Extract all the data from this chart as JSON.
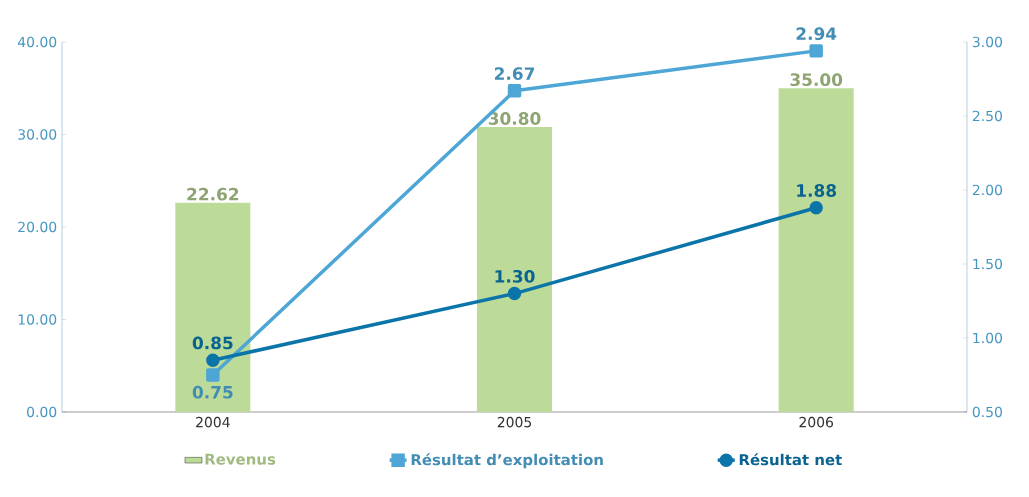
{
  "chart_data": {
    "type": "bar",
    "categories": [
      "2004",
      "2005",
      "2006"
    ],
    "ylim": [
      0,
      40
    ],
    "yticks": [
      {
        "value": 0,
        "label": "0.00"
      },
      {
        "value": 10,
        "label": "10.00"
      },
      {
        "value": 20,
        "label": "20.00"
      },
      {
        "value": 30,
        "label": "30.00"
      },
      {
        "value": 40,
        "label": "40.00"
      }
    ],
    "y2lim": [
      0.5,
      3
    ],
    "y2ticks": [
      {
        "value": 0.5,
        "label": "0.50"
      },
      {
        "value": 1,
        "label": "1.00"
      },
      {
        "value": 1.5,
        "label": "1.50"
      },
      {
        "value": 2,
        "label": "2.00"
      },
      {
        "value": 2.5,
        "label": "2.50"
      },
      {
        "value": 3,
        "label": "3.00"
      }
    ],
    "legend": "bottom",
    "grid": false,
    "series": [
      {
        "name": "Revenus",
        "color": "#bddb98",
        "values": [
          22.62,
          30.8,
          35.0
        ],
        "value_labels": [
          "22.62",
          "30.80",
          "35.00"
        ]
      },
      {
        "name": "Résultat d’exploitation",
        "type": "line",
        "axis": "y2",
        "marker": "square",
        "color": "#4da6d5",
        "values": [
          0.75,
          2.67,
          2.94
        ],
        "value_labels": [
          "0.75",
          "2.67",
          "2.94"
        ]
      },
      {
        "name": "Résultat net",
        "type": "line",
        "axis": "y2",
        "marker": "circle",
        "color": "#0b75a9",
        "values": [
          0.85,
          1.3,
          1.88
        ],
        "value_labels": [
          "0.85",
          "1.30",
          "1.88"
        ]
      }
    ]
  }
}
